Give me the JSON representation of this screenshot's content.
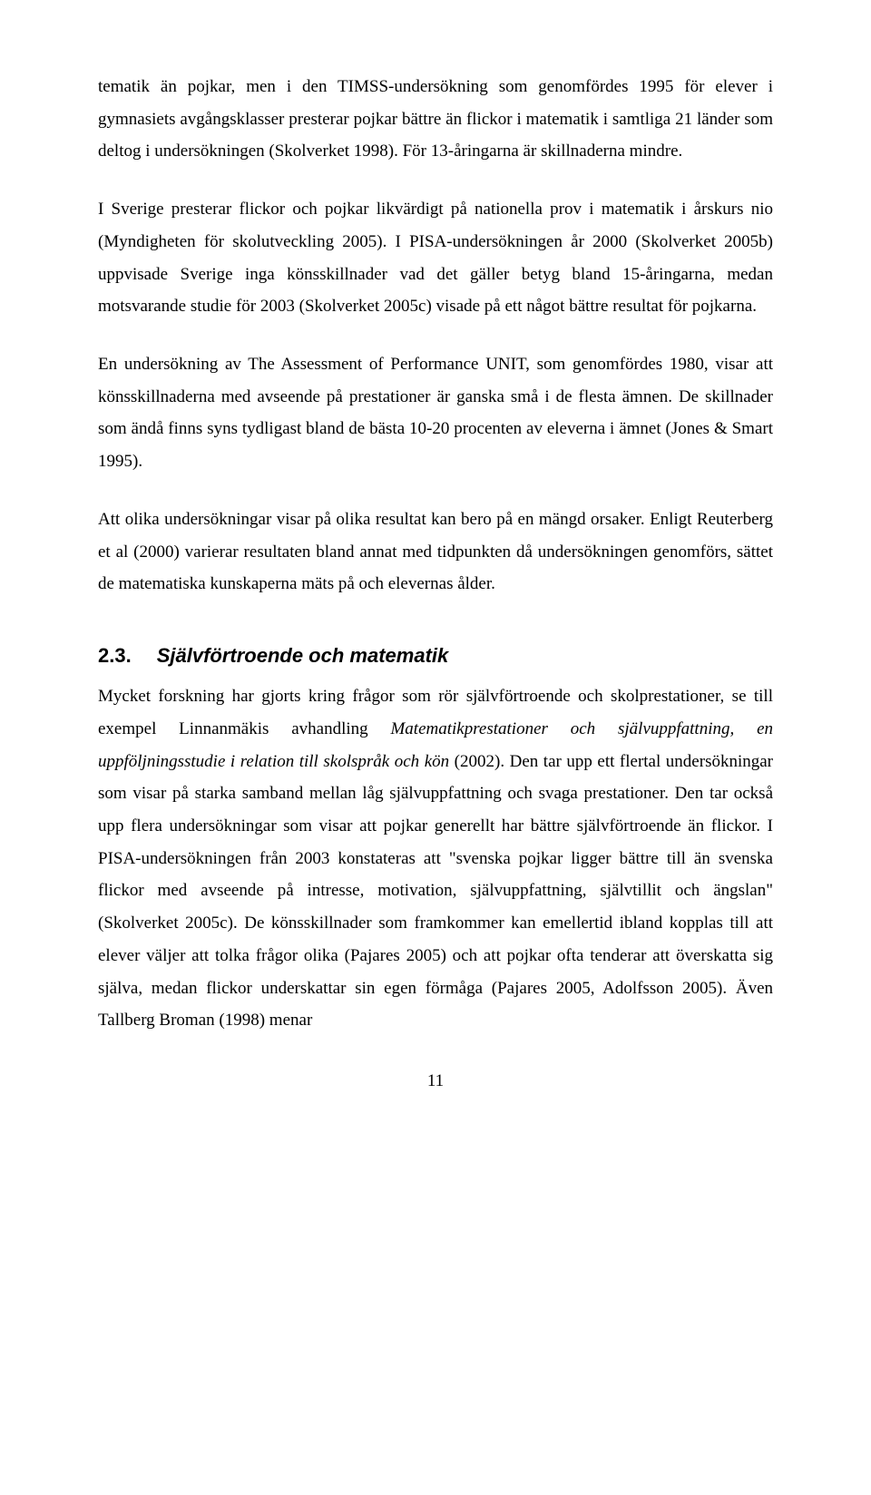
{
  "paragraphs": {
    "p1": "tematik än pojkar, men i den TIMSS-undersökning som genomfördes 1995 för elever i gymnasiets avgångsklasser presterar pojkar bättre än flickor i matematik i samtliga 21 länder som deltog i undersökningen (Skolverket 1998). För 13-åringarna är skillnaderna mindre.",
    "p2": "I Sverige presterar flickor och pojkar likvärdigt på nationella prov i matematik i årskurs nio (Myndigheten för skolutveckling 2005). I PISA-undersökningen år 2000 (Skolverket 2005b) uppvisade Sverige inga könsskillnader vad det gäller betyg bland 15-åringarna, medan motsvarande studie för 2003 (Skolverket 2005c) visade på ett något bättre resultat för pojkarna.",
    "p3": "En undersökning av The Assessment of Performance UNIT, som genomfördes 1980, visar att könsskillnaderna med avseende på prestationer är ganska små i de flesta ämnen. De skillnader som ändå finns syns tydligast bland de bästa 10-20 procenten av eleverna i ämnet (Jones & Smart 1995).",
    "p4": "Att olika undersökningar visar på olika resultat kan bero på en mängd orsaker. Enligt Reuterberg et al (2000) varierar resultaten bland annat med tidpunkten då undersökningen genomförs, sättet de matematiska kunskaperna mäts på och elevernas ålder.",
    "p5a": "Mycket forskning har gjorts kring frågor som rör självförtroende och skolprestationer, se till exempel Linnanmäkis avhandling ",
    "p5_italic": "Matematikprestationer och självuppfattning, en uppföljningsstudie i relation till skolspråk och kön",
    "p5b": " (2002). Den tar upp ett flertal undersökningar som visar på starka samband mellan låg självuppfattning och svaga prestationer. Den tar också upp flera undersökningar som visar att pojkar generellt har bättre självförtroende än flickor. I PISA-undersökningen från 2003 konstateras att \"svenska pojkar ligger bättre till än svenska flickor med avseende på intresse, motivation, självuppfattning, självtillit och ängslan\" (Skolverket 2005c). De könsskillnader som framkommer kan emellertid ibland kopplas till att elever väljer att tolka frågor olika (Pajares 2005) och att pojkar ofta tenderar att överskatta sig själva, medan flickor underskattar sin egen förmåga (Pajares 2005, Adolfsson 2005). Även Tallberg Broman (1998) menar"
  },
  "heading": {
    "number": "2.3.",
    "title": "Självförtroende och matematik"
  },
  "pageNumber": "11"
}
